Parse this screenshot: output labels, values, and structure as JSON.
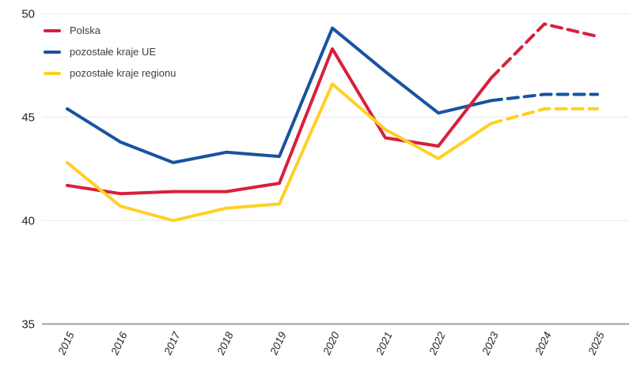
{
  "chart_data": {
    "type": "line",
    "title": "",
    "xlabel": "",
    "ylabel": "",
    "categories": [
      "2015",
      "2016",
      "2017",
      "2018",
      "2019",
      "2020",
      "2021",
      "2022",
      "2023",
      "2024",
      "2025"
    ],
    "series": [
      {
        "name": "Polska",
        "color": "#D81F3D",
        "values": [
          41.7,
          41.3,
          41.4,
          41.4,
          41.8,
          48.3,
          44.0,
          43.6,
          46.9,
          49.5,
          48.9
        ]
      },
      {
        "name": "pozostałe kraje UE",
        "color": "#17539F",
        "values": [
          45.4,
          43.8,
          42.8,
          43.3,
          43.1,
          49.3,
          47.2,
          45.2,
          45.8,
          46.1,
          46.1
        ]
      },
      {
        "name": "pozostałe kraje regionu",
        "color": "#FFD025",
        "values": [
          42.8,
          40.7,
          40.0,
          40.6,
          40.8,
          46.6,
          44.4,
          43.0,
          44.7,
          45.4,
          45.4
        ]
      }
    ],
    "forecast_start_category": "2023",
    "forecast_style": "dashed",
    "ylim": [
      35,
      50
    ],
    "yticks": [
      35,
      40,
      45,
      50
    ],
    "grid": "horizontal",
    "legend_position": "top-left",
    "z_order": [
      1,
      0,
      2
    ]
  },
  "colors": {
    "gridline": "#E8E8E8",
    "axis_line": "#A3A3A3",
    "tick_text": "#262626",
    "legend_text": "#3F3F3F"
  }
}
